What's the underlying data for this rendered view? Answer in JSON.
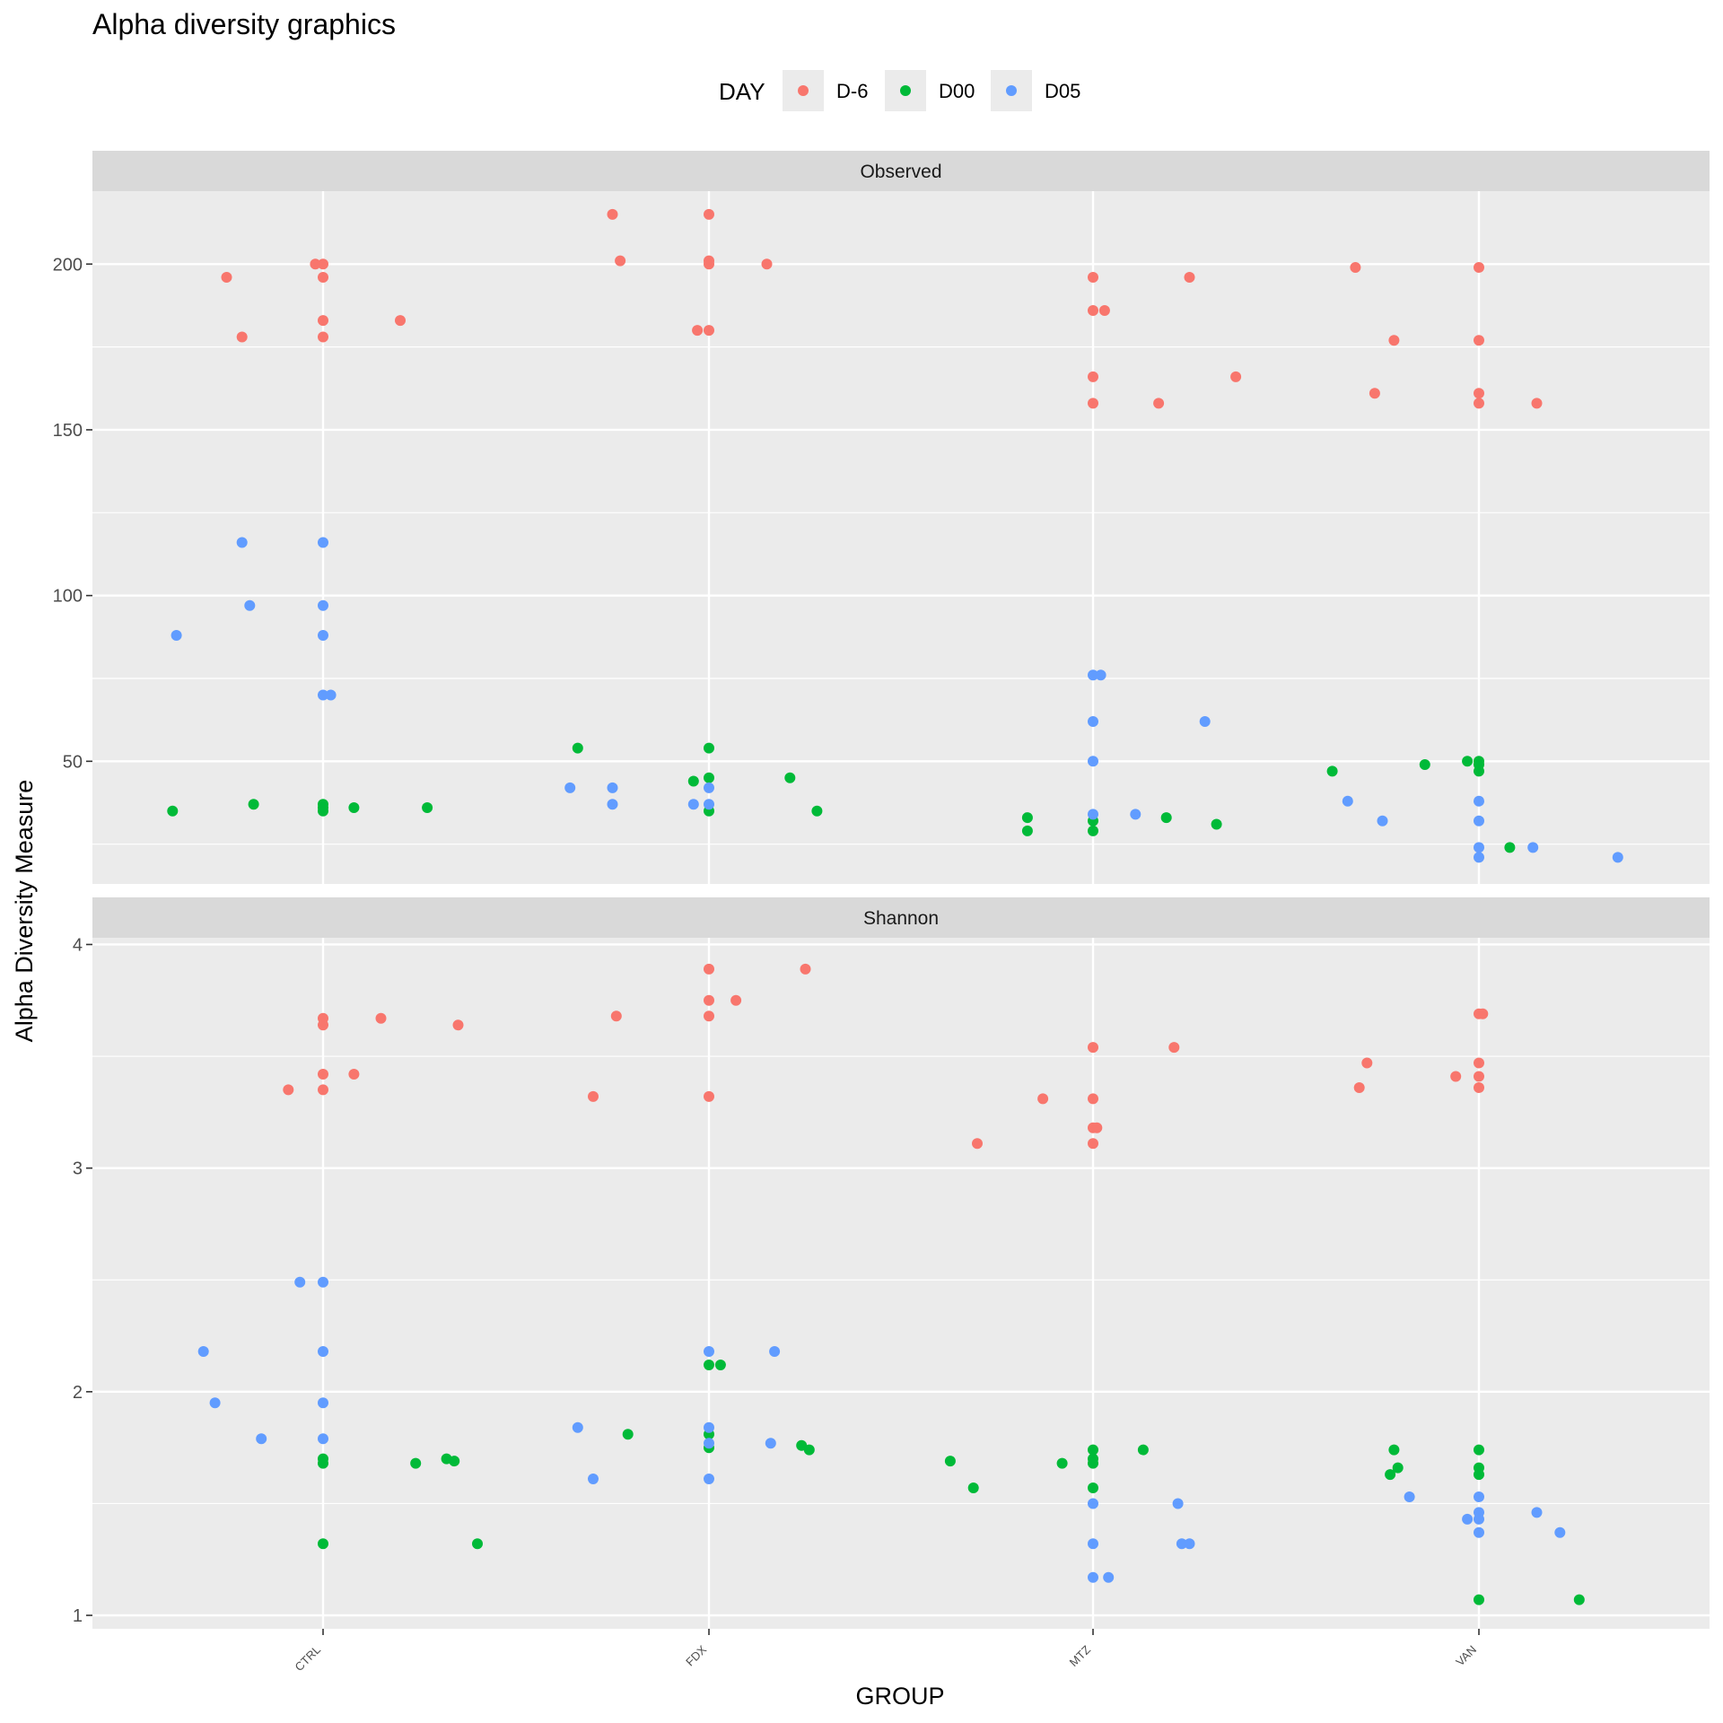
{
  "chart_data": {
    "type": "scatter",
    "title": "Alpha diversity graphics",
    "xlabel": "GROUP",
    "ylabel": "Alpha Diversity Measure",
    "categories": [
      "CTRL",
      "FDX",
      "MTZ",
      "VAN"
    ],
    "legend": {
      "title": "DAY",
      "placement": "top",
      "entries": [
        {
          "name": "D-6",
          "color": "#F8766D"
        },
        {
          "name": "D00",
          "color": "#00BA38"
        },
        {
          "name": "D05",
          "color": "#619CFF"
        }
      ]
    },
    "grid": true,
    "panels": [
      {
        "name": "Observed",
        "ylim": [
          13,
          222
        ],
        "yticks": [
          50,
          100,
          150,
          200
        ],
        "series": [
          {
            "name": "D-6",
            "points": [
              [
                "CTRL",
                196,
                -0.25
              ],
              [
                "CTRL",
                178,
                -0.21
              ],
              [
                "CTRL",
                200,
                -0.02
              ],
              [
                "CTRL",
                200,
                0
              ],
              [
                "CTRL",
                196,
                0
              ],
              [
                "CTRL",
                183,
                0
              ],
              [
                "CTRL",
                178,
                0
              ],
              [
                "CTRL",
                183,
                0.2
              ],
              [
                "FDX",
                215,
                -0.25
              ],
              [
                "FDX",
                201,
                -0.23
              ],
              [
                "FDX",
                215,
                0
              ],
              [
                "FDX",
                201,
                0
              ],
              [
                "FDX",
                200,
                0
              ],
              [
                "FDX",
                180,
                -0.03
              ],
              [
                "FDX",
                180,
                0
              ],
              [
                "FDX",
                200,
                0.15
              ],
              [
                "MTZ",
                196,
                0
              ],
              [
                "MTZ",
                186,
                0
              ],
              [
                "MTZ",
                186,
                0.03
              ],
              [
                "MTZ",
                166,
                0
              ],
              [
                "MTZ",
                158,
                0
              ],
              [
                "MTZ",
                158,
                0.17
              ],
              [
                "MTZ",
                196,
                0.25
              ],
              [
                "MTZ",
                166,
                0.37
              ],
              [
                "VAN",
                199,
                -0.32
              ],
              [
                "VAN",
                161,
                -0.27
              ],
              [
                "VAN",
                177,
                -0.22
              ],
              [
                "VAN",
                199,
                0
              ],
              [
                "VAN",
                177,
                0
              ],
              [
                "VAN",
                161,
                0
              ],
              [
                "VAN",
                158,
                0
              ],
              [
                "VAN",
                158,
                0.15
              ]
            ]
          },
          {
            "name": "D00",
            "points": [
              [
                "CTRL",
                35,
                -0.39
              ],
              [
                "CTRL",
                37,
                -0.18
              ],
              [
                "CTRL",
                37,
                0
              ],
              [
                "CTRL",
                36,
                0
              ],
              [
                "CTRL",
                35,
                0
              ],
              [
                "CTRL",
                36,
                0.08
              ],
              [
                "CTRL",
                36,
                0.27
              ],
              [
                "FDX",
                54,
                -0.34
              ],
              [
                "FDX",
                44,
                -0.04
              ],
              [
                "FDX",
                54,
                0
              ],
              [
                "FDX",
                45,
                0
              ],
              [
                "FDX",
                35,
                0
              ],
              [
                "FDX",
                45,
                0.21
              ],
              [
                "FDX",
                35,
                0.28
              ],
              [
                "MTZ",
                33,
                -0.17
              ],
              [
                "MTZ",
                29,
                -0.17
              ],
              [
                "MTZ",
                32,
                0
              ],
              [
                "MTZ",
                29,
                0
              ],
              [
                "MTZ",
                33,
                0.19
              ],
              [
                "MTZ",
                31,
                0.32
              ],
              [
                "VAN",
                47,
                -0.38
              ],
              [
                "VAN",
                49,
                -0.14
              ],
              [
                "VAN",
                50,
                -0.03
              ],
              [
                "VAN",
                50,
                0
              ],
              [
                "VAN",
                49,
                0
              ],
              [
                "VAN",
                47,
                0
              ],
              [
                "VAN",
                24,
                0.08
              ]
            ]
          },
          {
            "name": "D05",
            "points": [
              [
                "CTRL",
                116,
                -0.21
              ],
              [
                "CTRL",
                97,
                -0.19
              ],
              [
                "CTRL",
                88,
                -0.38
              ],
              [
                "CTRL",
                116,
                0
              ],
              [
                "CTRL",
                97,
                0
              ],
              [
                "CTRL",
                88,
                0
              ],
              [
                "CTRL",
                70,
                0
              ],
              [
                "CTRL",
                70,
                0.02
              ],
              [
                "FDX",
                42,
                -0.36
              ],
              [
                "FDX",
                42,
                -0.25
              ],
              [
                "FDX",
                37,
                -0.25
              ],
              [
                "FDX",
                37,
                -0.04
              ],
              [
                "FDX",
                42,
                0
              ],
              [
                "FDX",
                37,
                0
              ],
              [
                "MTZ",
                76,
                0
              ],
              [
                "MTZ",
                76,
                0.02
              ],
              [
                "MTZ",
                62,
                0
              ],
              [
                "MTZ",
                50,
                0
              ],
              [
                "MTZ",
                34,
                0
              ],
              [
                "MTZ",
                34,
                0.11
              ],
              [
                "MTZ",
                62,
                0.29
              ],
              [
                "VAN",
                38,
                -0.34
              ],
              [
                "VAN",
                32,
                -0.25
              ],
              [
                "VAN",
                38,
                0
              ],
              [
                "VAN",
                32,
                0
              ],
              [
                "VAN",
                24,
                0
              ],
              [
                "VAN",
                21,
                0
              ],
              [
                "VAN",
                24,
                0.14
              ],
              [
                "VAN",
                21,
                0.36
              ]
            ]
          }
        ]
      },
      {
        "name": "Shannon",
        "ylim": [
          0.94,
          4.03
        ],
        "yticks": [
          1,
          2,
          3,
          4
        ],
        "series": [
          {
            "name": "D-6",
            "points": [
              [
                "CTRL",
                3.35,
                -0.09
              ],
              [
                "CTRL",
                3.67,
                0
              ],
              [
                "CTRL",
                3.64,
                0
              ],
              [
                "CTRL",
                3.42,
                0
              ],
              [
                "CTRL",
                3.35,
                0
              ],
              [
                "CTRL",
                3.42,
                0.08
              ],
              [
                "CTRL",
                3.67,
                0.15
              ],
              [
                "CTRL",
                3.64,
                0.35
              ],
              [
                "FDX",
                3.32,
                -0.3
              ],
              [
                "FDX",
                3.68,
                -0.24
              ],
              [
                "FDX",
                3.89,
                0
              ],
              [
                "FDX",
                3.75,
                0
              ],
              [
                "FDX",
                3.68,
                0
              ],
              [
                "FDX",
                3.32,
                0
              ],
              [
                "FDX",
                3.75,
                0.07
              ],
              [
                "FDX",
                3.89,
                0.25
              ],
              [
                "MTZ",
                3.11,
                -0.3
              ],
              [
                "MTZ",
                3.31,
                -0.13
              ],
              [
                "MTZ",
                3.54,
                0
              ],
              [
                "MTZ",
                3.31,
                0
              ],
              [
                "MTZ",
                3.18,
                0
              ],
              [
                "MTZ",
                3.18,
                0.01
              ],
              [
                "MTZ",
                3.11,
                0
              ],
              [
                "MTZ",
                3.54,
                0.21
              ],
              [
                "VAN",
                3.36,
                -0.31
              ],
              [
                "VAN",
                3.47,
                -0.29
              ],
              [
                "VAN",
                3.41,
                -0.06
              ],
              [
                "VAN",
                3.69,
                0
              ],
              [
                "VAN",
                3.69,
                0.01
              ],
              [
                "VAN",
                3.47,
                0
              ],
              [
                "VAN",
                3.41,
                0
              ],
              [
                "VAN",
                3.36,
                0
              ]
            ]
          },
          {
            "name": "D00",
            "points": [
              [
                "CTRL",
                1.7,
                0
              ],
              [
                "CTRL",
                1.68,
                0
              ],
              [
                "CTRL",
                1.32,
                0
              ],
              [
                "CTRL",
                1.68,
                0.24
              ],
              [
                "CTRL",
                1.7,
                0.32
              ],
              [
                "CTRL",
                1.69,
                0.34
              ],
              [
                "CTRL",
                1.32,
                0.4
              ],
              [
                "FDX",
                1.81,
                -0.21
              ],
              [
                "FDX",
                2.12,
                0
              ],
              [
                "FDX",
                2.12,
                0.03
              ],
              [
                "FDX",
                1.81,
                0
              ],
              [
                "FDX",
                1.75,
                0
              ],
              [
                "FDX",
                1.76,
                0.24
              ],
              [
                "FDX",
                1.74,
                0.26
              ],
              [
                "MTZ",
                1.69,
                -0.37
              ],
              [
                "MTZ",
                1.57,
                -0.31
              ],
              [
                "MTZ",
                1.68,
                -0.08
              ],
              [
                "MTZ",
                1.74,
                0
              ],
              [
                "MTZ",
                1.7,
                0
              ],
              [
                "MTZ",
                1.68,
                0
              ],
              [
                "MTZ",
                1.57,
                0
              ],
              [
                "MTZ",
                1.74,
                0.13
              ],
              [
                "VAN",
                1.74,
                -0.22
              ],
              [
                "VAN",
                1.63,
                -0.23
              ],
              [
                "VAN",
                1.66,
                -0.21
              ],
              [
                "VAN",
                1.74,
                0
              ],
              [
                "VAN",
                1.66,
                0
              ],
              [
                "VAN",
                1.63,
                0
              ],
              [
                "VAN",
                1.07,
                0
              ],
              [
                "VAN",
                1.07,
                0.26
              ]
            ]
          },
          {
            "name": "D05",
            "points": [
              [
                "CTRL",
                2.49,
                -0.06
              ],
              [
                "CTRL",
                2.18,
                -0.31
              ],
              [
                "CTRL",
                1.95,
                -0.28
              ],
              [
                "CTRL",
                1.79,
                -0.16
              ],
              [
                "CTRL",
                2.49,
                0
              ],
              [
                "CTRL",
                2.18,
                0
              ],
              [
                "CTRL",
                1.95,
                0
              ],
              [
                "CTRL",
                1.79,
                0
              ],
              [
                "FDX",
                1.84,
                -0.34
              ],
              [
                "FDX",
                1.61,
                -0.3
              ],
              [
                "FDX",
                2.18,
                0
              ],
              [
                "FDX",
                1.84,
                0
              ],
              [
                "FDX",
                1.77,
                0
              ],
              [
                "FDX",
                1.61,
                0
              ],
              [
                "FDX",
                2.18,
                0.17
              ],
              [
                "FDX",
                1.77,
                0.16
              ],
              [
                "MTZ",
                1.5,
                0
              ],
              [
                "MTZ",
                1.32,
                0
              ],
              [
                "MTZ",
                1.17,
                0
              ],
              [
                "MTZ",
                1.17,
                0.04
              ],
              [
                "MTZ",
                1.5,
                0.22
              ],
              [
                "MTZ",
                1.32,
                0.23
              ],
              [
                "MTZ",
                1.32,
                0.25
              ],
              [
                "VAN",
                1.53,
                -0.18
              ],
              [
                "VAN",
                1.43,
                -0.03
              ],
              [
                "VAN",
                1.53,
                0
              ],
              [
                "VAN",
                1.46,
                0
              ],
              [
                "VAN",
                1.43,
                0
              ],
              [
                "VAN",
                1.37,
                0
              ],
              [
                "VAN",
                1.46,
                0.15
              ],
              [
                "VAN",
                1.37,
                0.21
              ]
            ]
          }
        ]
      }
    ]
  }
}
